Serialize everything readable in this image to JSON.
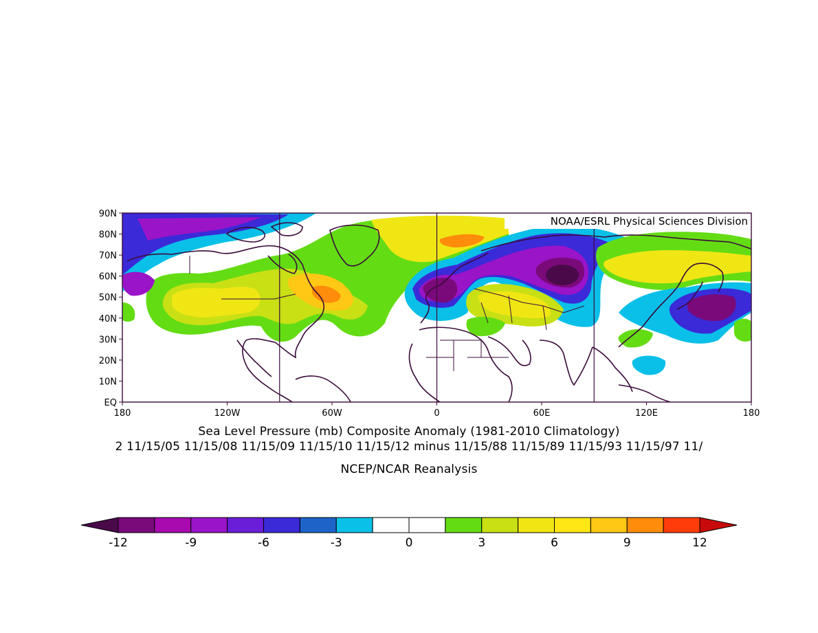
{
  "map": {
    "credit": "NOAA/ESRL Physical Sciences Division",
    "lat_labels": [
      "90N",
      "80N",
      "70N",
      "60N",
      "50N",
      "40N",
      "30N",
      "20N",
      "10N",
      "EQ"
    ],
    "lon_labels": [
      "180",
      "120W",
      "60W",
      "0",
      "60E",
      "120E",
      "180"
    ],
    "extent": {
      "lon": [
        -180,
        180
      ],
      "lat": [
        0,
        90
      ]
    }
  },
  "titles": {
    "line1": "Sea Level Pressure (mb) Composite Anomaly (1981-2010 Climatology)",
    "line2": "2 11/15/05 11/15/08 11/15/09 11/15/10 11/15/12 minus 11/15/88 11/15/89 11/15/93 11/15/97 11/",
    "line3": "NCEP/NCAR Reanalysis"
  },
  "colorbar": {
    "tick_labels": [
      "-12",
      "-9",
      "-6",
      "-3",
      "0",
      "3",
      "6",
      "9",
      "12"
    ],
    "colors": [
      "#4a0a4a",
      "#7a0a7a",
      "#a80ab0",
      "#9a14c8",
      "#6a1ed8",
      "#3a2ad8",
      "#1e64c8",
      "#0ac0e8",
      "#ffffff",
      "#ffffff",
      "#64dc14",
      "#c8e014",
      "#f0e614",
      "#ffe614",
      "#ffc814",
      "#ff8c0a",
      "#ff3c0a",
      "#c80a0a"
    ]
  },
  "anomaly_features": [
    {
      "lon": -150,
      "lat": 83,
      "value": -9
    },
    {
      "lon": 65,
      "lat": 60,
      "value": -12
    },
    {
      "lon": 5,
      "lat": 55,
      "value": -10
    },
    {
      "lon": 150,
      "lat": 48,
      "value": -10
    },
    {
      "lon": -120,
      "lat": 45,
      "value": 6
    },
    {
      "lon": -55,
      "lat": 48,
      "value": 9
    },
    {
      "lon": 5,
      "lat": 80,
      "value": 9
    },
    {
      "lon": 40,
      "lat": 45,
      "value": 6
    },
    {
      "lon": 145,
      "lat": 65,
      "value": 6
    }
  ]
}
